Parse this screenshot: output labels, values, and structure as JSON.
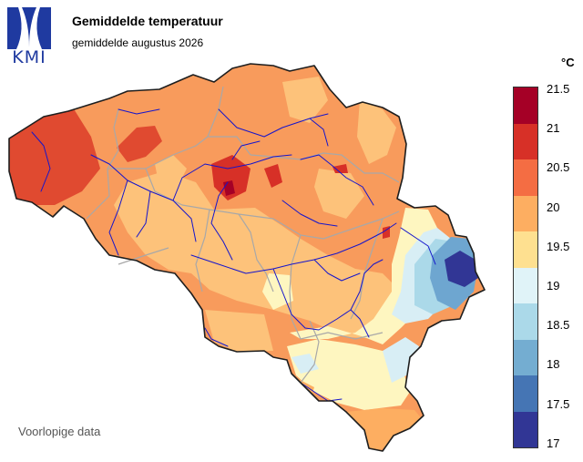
{
  "header": {
    "logo_text": "KMI",
    "title": "Gemiddelde temperatuur",
    "subtitle": "gemiddelde augustus 2026"
  },
  "footer": {
    "note": "Voorlopige data"
  },
  "legend": {
    "unit": "°C",
    "ticks": [
      "21.5",
      "21",
      "20.5",
      "20",
      "19.5",
      "19",
      "18.5",
      "18",
      "17.5",
      "17"
    ],
    "colors": [
      "#a50026",
      "#d73027",
      "#f46d43",
      "#fdae61",
      "#fee090",
      "#e0f3f8",
      "#abd9e9",
      "#74add1",
      "#4575b4",
      "#313695"
    ],
    "colors_order": "top-to-bottom"
  },
  "map": {
    "country": "Belgium",
    "border_color": "#222222",
    "province_color": "#aaaaaa",
    "river_color": "#1010cc"
  }
}
